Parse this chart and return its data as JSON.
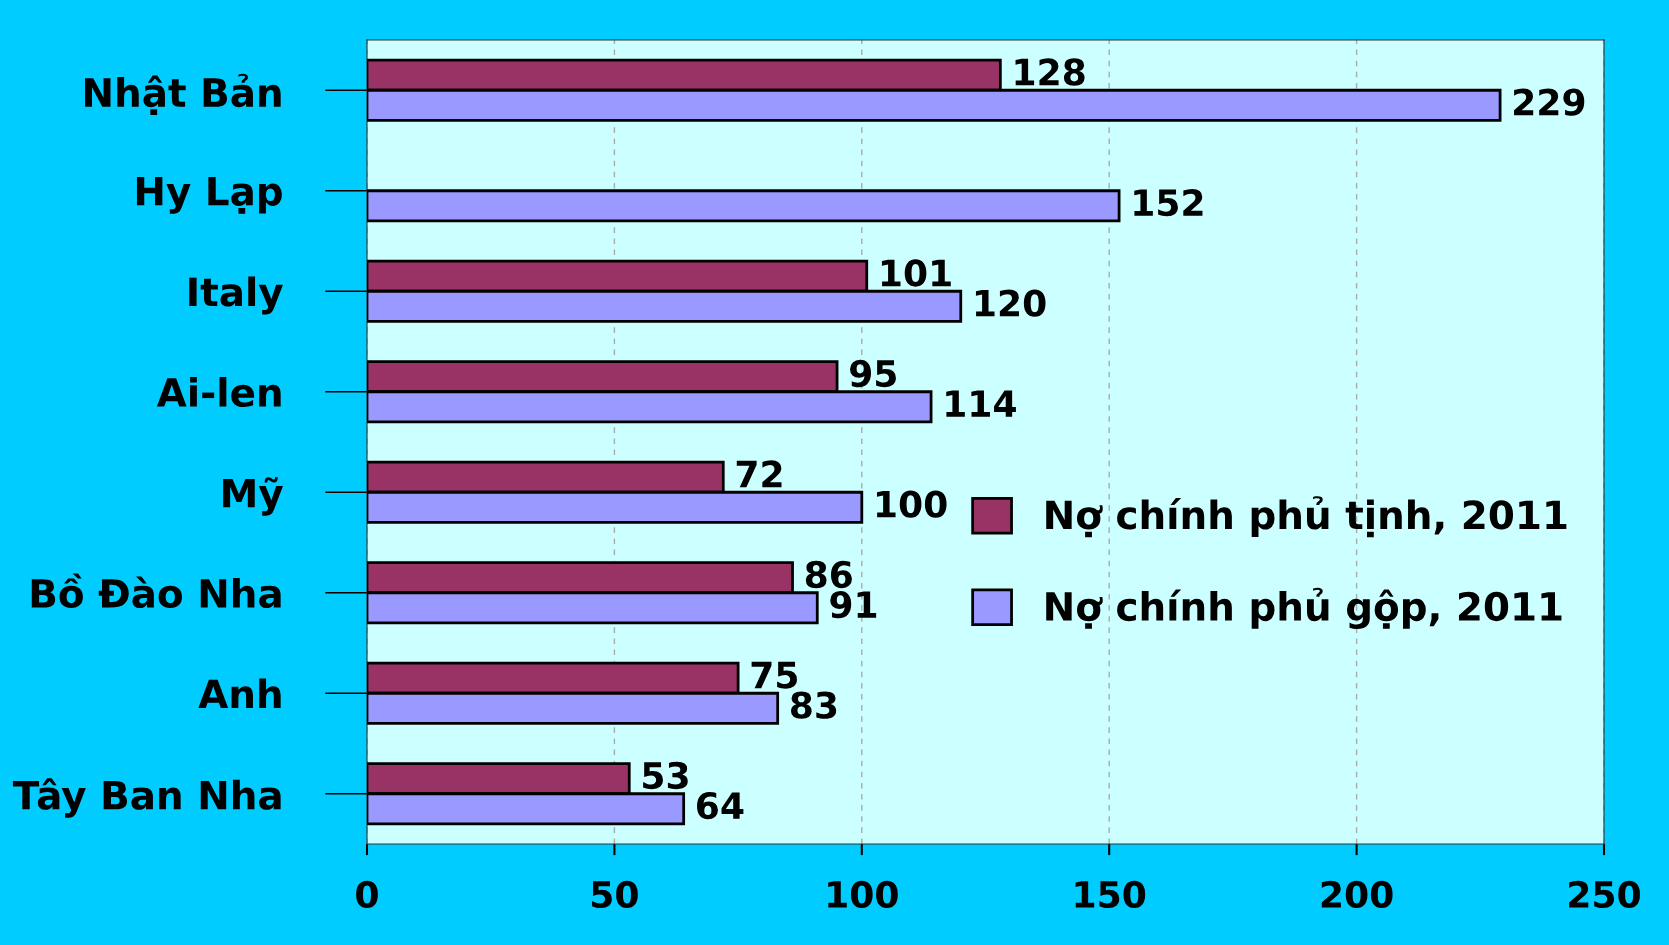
{
  "chart_data": {
    "type": "bar",
    "orientation": "horizontal",
    "categories": [
      "Nhật Bản",
      "Hy Lạp",
      "Italy",
      "Ai-len",
      "Mỹ",
      "Bồ Đào Nha",
      "Anh",
      "Tây Ban Nha"
    ],
    "series": [
      {
        "name": "Nợ chính phủ tịnh, 2011",
        "color": "#993366",
        "values": [
          128,
          null,
          101,
          95,
          72,
          86,
          75,
          53
        ]
      },
      {
        "name": "Nợ chính phủ gộp, 2011",
        "color": "#9999ff",
        "values": [
          229,
          152,
          120,
          114,
          100,
          91,
          83,
          64
        ]
      }
    ],
    "xlim": [
      0,
      250
    ],
    "xticks": [
      0,
      50,
      100,
      150,
      200,
      250
    ],
    "grid": "x",
    "legend": "right",
    "data_labels": true
  }
}
